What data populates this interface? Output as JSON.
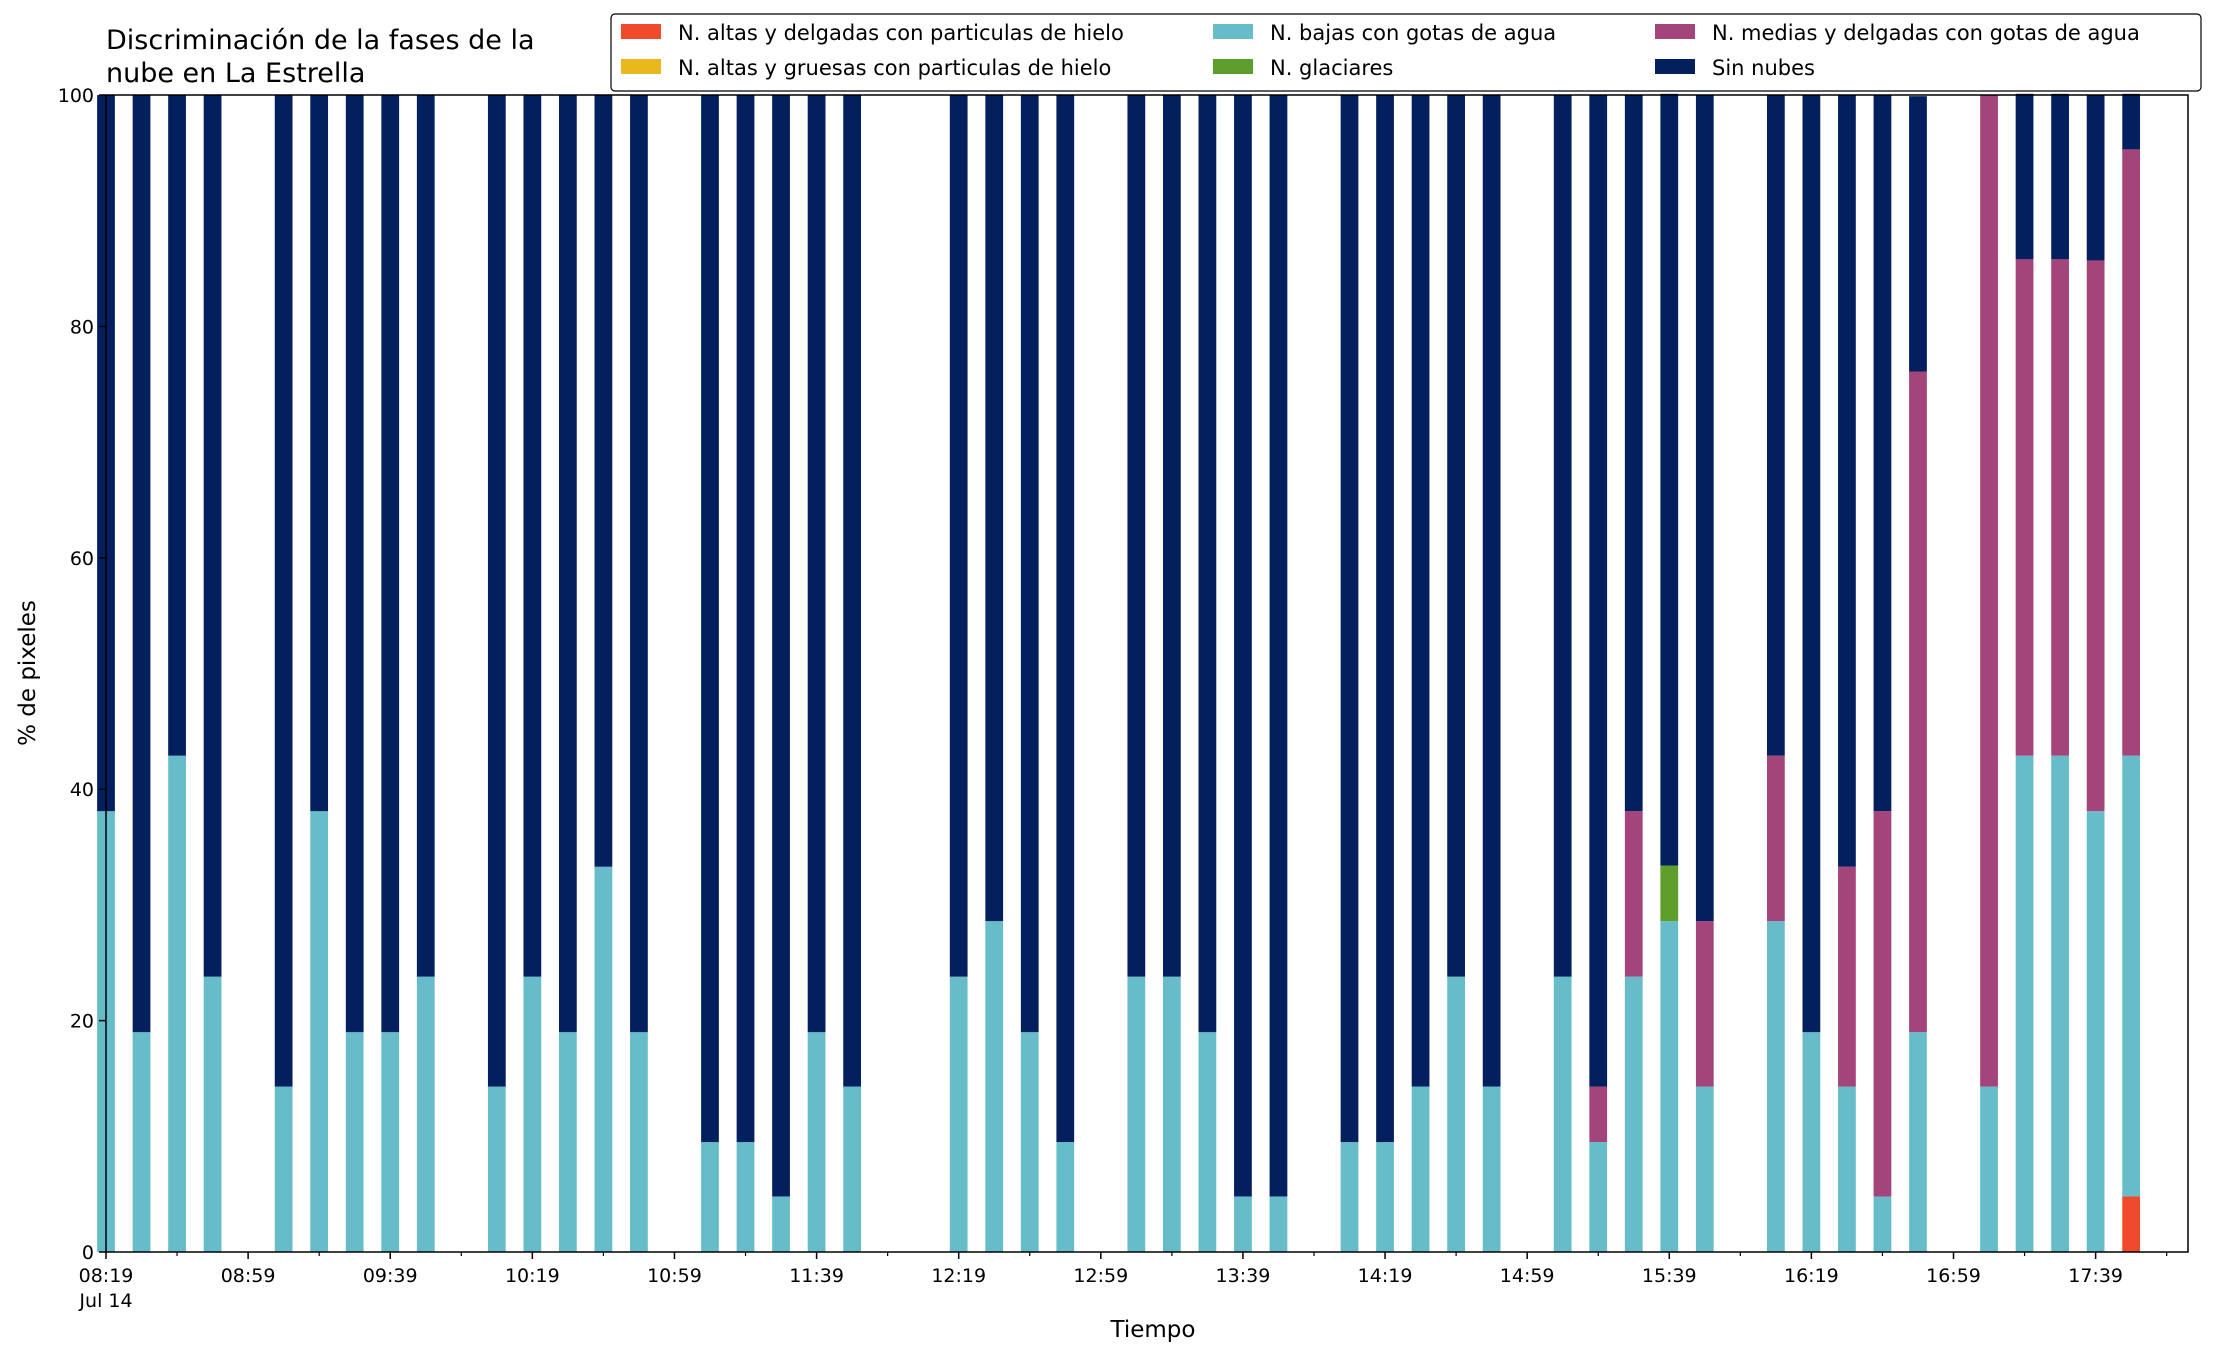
{
  "chart_data": {
    "type": "bar",
    "stacked": true,
    "title_lines": [
      "Discriminación de la fases de la",
      "nube en La Estrella"
    ],
    "xlabel": "Tiempo",
    "ylabel": "% de pixeles",
    "ylim": [
      0,
      100
    ],
    "yticks": [
      "0",
      "20",
      "40",
      "60",
      "80",
      "100"
    ],
    "grid": false,
    "legend_position": "top-right",
    "xlim_minutes": [
      0,
      586
    ],
    "date_label": "Jul 14",
    "xtick_labels": [
      "08:19",
      "08:59",
      "09:39",
      "10:19",
      "10:59",
      "11:39",
      "12:19",
      "12:59",
      "13:39",
      "14:19",
      "14:59",
      "15:39",
      "16:19",
      "16:59",
      "17:39"
    ],
    "times": [
      "08:19",
      "08:29",
      "08:39",
      "08:49",
      "09:09",
      "09:19",
      "09:29",
      "09:39",
      "09:49",
      "10:09",
      "10:19",
      "10:29",
      "10:39",
      "10:49",
      "11:09",
      "11:19",
      "11:29",
      "11:39",
      "11:49",
      "12:19",
      "12:29",
      "12:39",
      "12:49",
      "13:09",
      "13:19",
      "13:29",
      "13:39",
      "13:49",
      "14:09",
      "14:19",
      "14:29",
      "14:39",
      "14:49",
      "15:09",
      "15:19",
      "15:29",
      "15:39",
      "15:49",
      "16:09",
      "16:19",
      "16:29",
      "16:39",
      "16:49",
      "17:09",
      "17:19",
      "17:29",
      "17:39",
      "17:49"
    ],
    "series": [
      {
        "name": "N. altas y delgadas con particulas de hielo",
        "color": "#ef4a2c",
        "values": [
          0,
          0,
          0,
          0,
          0,
          0,
          0,
          0,
          0,
          0,
          0,
          0,
          0,
          0,
          0,
          0,
          0,
          0,
          0,
          0,
          0,
          0,
          0,
          0,
          0,
          0,
          0,
          0,
          0,
          0,
          0,
          0,
          0,
          0,
          0,
          0,
          0,
          0,
          0,
          0,
          0,
          0,
          0,
          0,
          0,
          0,
          0,
          4.8
        ]
      },
      {
        "name": "N. altas y gruesas con particulas de hielo",
        "color": "#e8b81c",
        "values": [
          0,
          0,
          0,
          0,
          0,
          0,
          0,
          0,
          0,
          0,
          0,
          0,
          0,
          0,
          0,
          0,
          0,
          0,
          0,
          0,
          0,
          0,
          0,
          0,
          0,
          0,
          0,
          0,
          0,
          0,
          0,
          0,
          0,
          0,
          0,
          0,
          0,
          0,
          0,
          0,
          0,
          0,
          0,
          0,
          0,
          0,
          0,
          0
        ]
      },
      {
        "name": "N. bajas con gotas de agua",
        "color": "#66bdc9",
        "values": [
          38.1,
          19,
          42.9,
          23.8,
          14.3,
          38.1,
          19,
          19,
          23.8,
          14.3,
          23.8,
          19,
          33.3,
          19,
          9.5,
          9.5,
          4.8,
          19,
          14.3,
          23.8,
          28.6,
          19,
          9.5,
          23.8,
          23.8,
          19,
          4.8,
          4.8,
          9.5,
          9.5,
          14.3,
          23.8,
          14.3,
          23.8,
          9.5,
          23.8,
          28.6,
          14.3,
          28.6,
          19,
          14.3,
          4.8,
          19,
          14.3,
          42.9,
          42.9,
          38.1,
          38.1
        ]
      },
      {
        "name": "N. glaciares",
        "color": "#5e9e2c",
        "values": [
          0,
          0,
          0,
          0,
          0,
          0,
          0,
          0,
          0,
          0,
          0,
          0,
          0,
          0,
          0,
          0,
          0,
          0,
          0,
          0,
          0,
          0,
          0,
          0,
          0,
          0,
          0,
          0,
          0,
          0,
          0,
          0,
          0,
          0,
          0,
          0,
          4.8,
          0,
          0,
          0,
          0,
          0,
          0,
          0,
          0,
          0,
          0,
          0
        ]
      },
      {
        "name": "N. medias y delgadas con gotas de agua",
        "color": "#a3447a",
        "values": [
          0,
          0,
          0,
          0,
          0,
          0,
          0,
          0,
          0,
          0,
          0,
          0,
          0,
          0,
          0,
          0,
          0,
          0,
          0,
          0,
          0,
          0,
          0,
          0,
          0,
          0,
          0,
          0,
          0,
          0,
          0,
          0,
          0,
          0,
          4.8,
          14.3,
          0,
          14.3,
          14.3,
          0,
          19,
          33.3,
          57.1,
          85.7,
          42.9,
          42.9,
          47.6,
          52.4
        ]
      },
      {
        "name": "Sin nubes",
        "color": "#031f5e",
        "values": [
          61.9,
          81,
          57.1,
          76.2,
          85.7,
          61.9,
          81,
          81,
          76.2,
          85.7,
          76.2,
          81,
          66.7,
          81,
          90.5,
          90.5,
          95.2,
          81,
          85.7,
          76.2,
          71.4,
          81,
          90.5,
          76.2,
          76.2,
          81,
          95.2,
          95.2,
          90.5,
          90.5,
          85.7,
          76.2,
          85.7,
          76.2,
          85.7,
          61.9,
          66.7,
          71.4,
          57.1,
          81,
          66.7,
          61.9,
          23.8,
          0,
          14.3,
          14.3,
          14.3,
          4.8
        ]
      }
    ]
  }
}
